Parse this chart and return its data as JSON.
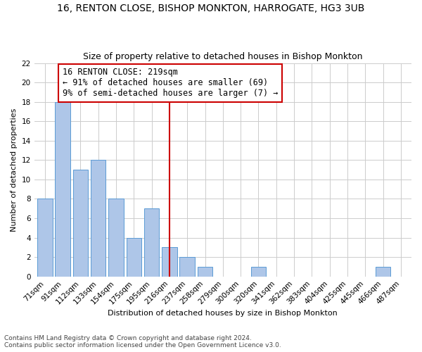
{
  "title1": "16, RENTON CLOSE, BISHOP MONKTON, HARROGATE, HG3 3UB",
  "title2": "Size of property relative to detached houses in Bishop Monkton",
  "xlabel": "Distribution of detached houses by size in Bishop Monkton",
  "ylabel": "Number of detached properties",
  "categories": [
    "71sqm",
    "91sqm",
    "112sqm",
    "133sqm",
    "154sqm",
    "175sqm",
    "195sqm",
    "216sqm",
    "237sqm",
    "258sqm",
    "279sqm",
    "300sqm",
    "320sqm",
    "341sqm",
    "362sqm",
    "383sqm",
    "404sqm",
    "425sqm",
    "445sqm",
    "466sqm",
    "487sqm"
  ],
  "values": [
    8,
    18,
    11,
    12,
    8,
    4,
    7,
    3,
    2,
    1,
    0,
    0,
    1,
    0,
    0,
    0,
    0,
    0,
    0,
    1,
    0
  ],
  "bar_color": "#aec6e8",
  "bar_edge_color": "#5b9bd5",
  "vline_x": 7,
  "vline_color": "#cc0000",
  "annotation_text": "16 RENTON CLOSE: 219sqm\n← 91% of detached houses are smaller (69)\n9% of semi-detached houses are larger (7) →",
  "annotation_box_color": "#ffffff",
  "annotation_box_edge": "#cc0000",
  "ylim": [
    0,
    22
  ],
  "yticks": [
    0,
    2,
    4,
    6,
    8,
    10,
    12,
    14,
    16,
    18,
    20,
    22
  ],
  "grid_color": "#cccccc",
  "footnote": "Contains HM Land Registry data © Crown copyright and database right 2024.\nContains public sector information licensed under the Open Government Licence v3.0.",
  "bg_color": "#ffffff",
  "title1_fontsize": 10,
  "title2_fontsize": 9,
  "axis_label_fontsize": 8,
  "tick_fontsize": 7.5,
  "annotation_fontsize": 8.5,
  "footnote_fontsize": 6.5
}
